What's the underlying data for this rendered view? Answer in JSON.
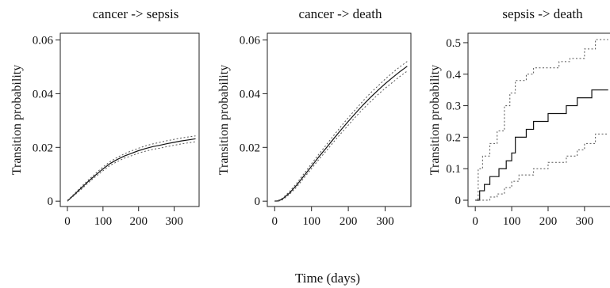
{
  "xlabel_common": "Time (days)",
  "chart_data": [
    {
      "type": "line",
      "title": "cancer -> sepsis",
      "xlabel": "",
      "ylabel": "Transition probability",
      "xlim": [
        -20,
        370
      ],
      "ylim": [
        -0.002,
        0.0625
      ],
      "xticks": [
        0,
        100,
        200,
        300
      ],
      "xtick_labels": [
        "0",
        "100",
        "200",
        "300"
      ],
      "yticks": [
        0,
        0.02,
        0.04,
        0.06
      ],
      "ytick_labels": [
        "0",
        "0.02",
        "0.04",
        "0.06"
      ],
      "grid": false,
      "step": false,
      "series": [
        {
          "role": "estimate",
          "x": [
            0,
            20,
            40,
            60,
            80,
            100,
            120,
            140,
            160,
            180,
            200,
            220,
            240,
            260,
            280,
            300,
            320,
            340,
            360
          ],
          "values": [
            0.0,
            0.0025,
            0.005,
            0.0075,
            0.0098,
            0.012,
            0.014,
            0.0155,
            0.0168,
            0.0178,
            0.0188,
            0.0196,
            0.0203,
            0.0208,
            0.0214,
            0.0219,
            0.0224,
            0.0228,
            0.0232
          ]
        },
        {
          "role": "upper",
          "x": [
            0,
            20,
            40,
            60,
            80,
            100,
            120,
            140,
            160,
            180,
            200,
            220,
            240,
            260,
            280,
            300,
            320,
            340,
            360
          ],
          "values": [
            0.0003,
            0.0028,
            0.0055,
            0.008,
            0.0104,
            0.0127,
            0.0147,
            0.0163,
            0.0176,
            0.0187,
            0.0197,
            0.0206,
            0.0213,
            0.0219,
            0.0225,
            0.023,
            0.0235,
            0.0239,
            0.0243
          ]
        },
        {
          "role": "lower",
          "x": [
            0,
            20,
            40,
            60,
            80,
            100,
            120,
            140,
            160,
            180,
            200,
            220,
            240,
            260,
            280,
            300,
            320,
            340,
            360
          ],
          "values": [
            0.0,
            0.0022,
            0.0045,
            0.007,
            0.0092,
            0.0113,
            0.0133,
            0.0147,
            0.016,
            0.0169,
            0.0179,
            0.0186,
            0.0193,
            0.0197,
            0.0203,
            0.0208,
            0.0213,
            0.0217,
            0.0221
          ]
        }
      ]
    },
    {
      "type": "line",
      "title": "cancer -> death",
      "xlabel": "",
      "ylabel": "Transition probability",
      "xlim": [
        -20,
        370
      ],
      "ylim": [
        -0.002,
        0.0625
      ],
      "xticks": [
        0,
        100,
        200,
        300
      ],
      "xtick_labels": [
        "0",
        "100",
        "200",
        "300"
      ],
      "yticks": [
        0,
        0.02,
        0.04,
        0.06
      ],
      "ytick_labels": [
        "0",
        "0.02",
        "0.04",
        "0.06"
      ],
      "grid": false,
      "step": false,
      "series": [
        {
          "role": "estimate",
          "x": [
            0,
            10,
            20,
            30,
            40,
            50,
            60,
            80,
            100,
            120,
            140,
            160,
            180,
            200,
            220,
            240,
            260,
            280,
            300,
            320,
            340,
            360
          ],
          "values": [
            0.0,
            0.0001,
            0.0007,
            0.0018,
            0.003,
            0.0045,
            0.006,
            0.0095,
            0.013,
            0.0165,
            0.0198,
            0.0232,
            0.0265,
            0.0297,
            0.0328,
            0.0358,
            0.0386,
            0.0412,
            0.0437,
            0.046,
            0.0482,
            0.0502
          ]
        },
        {
          "role": "upper",
          "x": [
            0,
            10,
            20,
            30,
            40,
            50,
            60,
            80,
            100,
            120,
            140,
            160,
            180,
            200,
            220,
            240,
            260,
            280,
            300,
            320,
            340,
            360
          ],
          "values": [
            0.0001,
            0.0003,
            0.001,
            0.0022,
            0.0035,
            0.0051,
            0.0067,
            0.0103,
            0.0139,
            0.0175,
            0.0209,
            0.0244,
            0.0278,
            0.0311,
            0.0342,
            0.0373,
            0.0402,
            0.0428,
            0.0454,
            0.0478,
            0.05,
            0.052
          ]
        },
        {
          "role": "lower",
          "x": [
            0,
            10,
            20,
            30,
            40,
            50,
            60,
            80,
            100,
            120,
            140,
            160,
            180,
            200,
            220,
            240,
            260,
            280,
            300,
            320,
            340,
            360
          ],
          "values": [
            0.0,
            0.0,
            0.0004,
            0.0014,
            0.0025,
            0.0039,
            0.0053,
            0.0087,
            0.0121,
            0.0155,
            0.0187,
            0.022,
            0.0252,
            0.0283,
            0.0314,
            0.0343,
            0.037,
            0.0396,
            0.042,
            0.0442,
            0.0464,
            0.0484
          ]
        }
      ]
    },
    {
      "type": "line",
      "title": "sepsis -> death",
      "xlabel": "",
      "ylabel": "Transition probability",
      "xlim": [
        -20,
        370
      ],
      "ylim": [
        -0.02,
        0.53
      ],
      "xticks": [
        0,
        100,
        200,
        300
      ],
      "xtick_labels": [
        "0",
        "100",
        "200",
        "300"
      ],
      "yticks": [
        0,
        0.1,
        0.2,
        0.3,
        0.4,
        0.5
      ],
      "ytick_labels": [
        "0",
        "0.1",
        "0.2",
        "0.3",
        "0.4",
        "0.5"
      ],
      "grid": false,
      "step": true,
      "series": [
        {
          "role": "estimate",
          "x": [
            0,
            12,
            25,
            40,
            65,
            85,
            100,
            110,
            140,
            160,
            200,
            250,
            280,
            320,
            365
          ],
          "values": [
            0.0,
            0.03,
            0.05,
            0.075,
            0.1,
            0.125,
            0.15,
            0.2,
            0.225,
            0.25,
            0.275,
            0.3,
            0.325,
            0.35,
            0.35
          ]
        },
        {
          "role": "upper",
          "x": [
            0,
            8,
            20,
            40,
            60,
            80,
            95,
            110,
            140,
            160,
            200,
            230,
            260,
            300,
            330,
            365
          ],
          "values": [
            0.0,
            0.1,
            0.14,
            0.18,
            0.22,
            0.3,
            0.34,
            0.38,
            0.4,
            0.42,
            0.42,
            0.44,
            0.45,
            0.48,
            0.51,
            0.51
          ]
        },
        {
          "role": "lower",
          "x": [
            0,
            40,
            60,
            80,
            100,
            120,
            160,
            200,
            250,
            280,
            300,
            330,
            365
          ],
          "values": [
            0.0,
            0.01,
            0.02,
            0.04,
            0.06,
            0.08,
            0.1,
            0.12,
            0.14,
            0.16,
            0.18,
            0.21,
            0.21
          ]
        }
      ]
    }
  ]
}
